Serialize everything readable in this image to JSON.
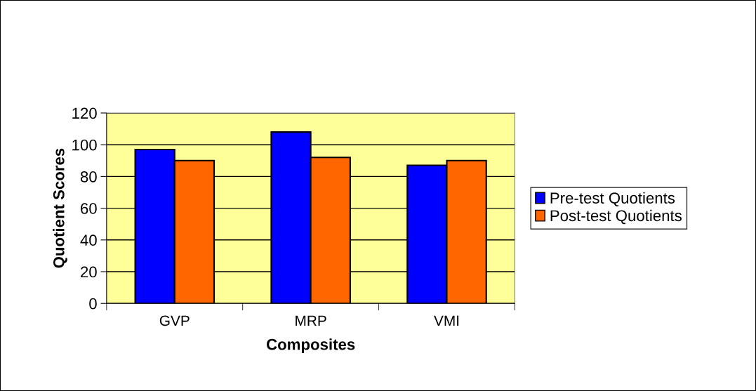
{
  "chart_data": {
    "type": "bar",
    "xlabel": "Composites",
    "ylabel": "Quotient Scores",
    "categories": [
      "GVP",
      "MRP",
      "VMI"
    ],
    "series": [
      {
        "name": "Pre-test Quotients",
        "color": "#0000ff",
        "values": [
          97,
          108,
          87
        ]
      },
      {
        "name": "Post-test Quotients",
        "color": "#ff6600",
        "values": [
          90,
          92,
          90
        ]
      }
    ],
    "ylim": [
      0,
      120
    ],
    "yticks": [
      0,
      20,
      40,
      60,
      80,
      100,
      120
    ],
    "grid": "y",
    "legend": "right"
  }
}
